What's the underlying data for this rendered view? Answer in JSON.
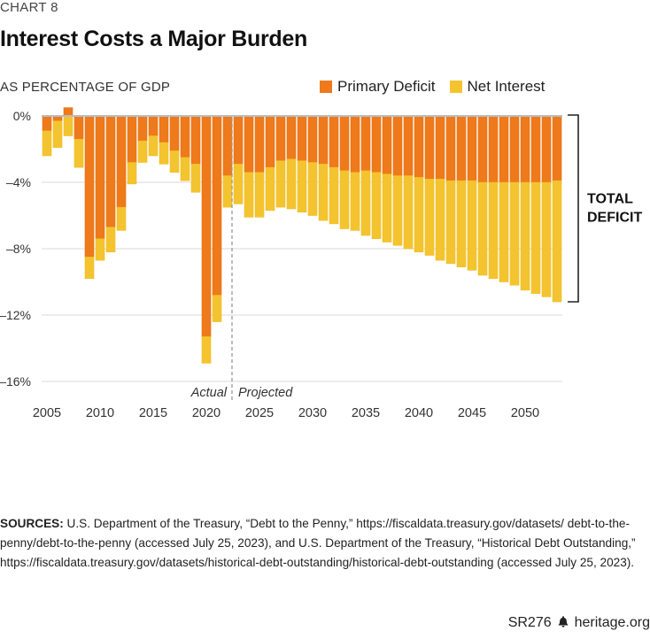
{
  "kicker": "CHART 8",
  "title": "Interest Costs a Major Burden",
  "subtitle": "AS PERCENTAGE OF GDP",
  "legend": [
    {
      "label": "Primary Deficit",
      "color": "#EE7A1C"
    },
    {
      "label": "Net Interest",
      "color": "#F4C430"
    }
  ],
  "annotations": {
    "actual": "Actual",
    "projected": "Projected",
    "bracket_label_line1": "TOTAL",
    "bracket_label_line2": "DEFICIT"
  },
  "sources": {
    "label": "SOURCES:",
    "text": " U.S. Department of the Treasury, “Debt to the Penny,” https://fiscaldata.treasury.gov/datasets/ debt-to-the-penny/debt-to-the-penny (accessed July 25, 2023), and U.S. Department of the Treasury, “Historical Debt Outstanding,” https://fiscaldata.treasury.gov/datasets/historical-debt-outstanding/historical-debt-outstanding (accessed July 25, 2023)."
  },
  "footer": {
    "report_id": "SR276",
    "icon": "liberty-bell-icon",
    "site": "heritage.org"
  },
  "chart_data": {
    "type": "bar",
    "stacked": true,
    "title": "Interest Costs a Major Burden",
    "ylabel": "AS PERCENTAGE OF GDP",
    "xlabel": "",
    "ylim": [
      -16,
      0
    ],
    "yticks": [
      0,
      -4,
      -8,
      -12,
      -16
    ],
    "ytick_labels": [
      "0%",
      "–4%",
      "–8%",
      "–12%",
      "–16%"
    ],
    "xtick_labels": [
      "2005",
      "2010",
      "2015",
      "2020",
      "2025",
      "2030",
      "2035",
      "2040",
      "2045",
      "2050"
    ],
    "grid": true,
    "legend_position": "top-right",
    "actual_projected_split_after": 2022,
    "categories": [
      2005,
      2006,
      2007,
      2008,
      2009,
      2010,
      2011,
      2012,
      2013,
      2014,
      2015,
      2016,
      2017,
      2018,
      2019,
      2020,
      2021,
      2022,
      2023,
      2024,
      2025,
      2026,
      2027,
      2028,
      2029,
      2030,
      2031,
      2032,
      2033,
      2034,
      2035,
      2036,
      2037,
      2038,
      2039,
      2040,
      2041,
      2042,
      2043,
      2044,
      2045,
      2046,
      2047,
      2048,
      2049,
      2050,
      2051,
      2052,
      2053
    ],
    "series": [
      {
        "name": "Primary Deficit",
        "color": "#EE7A1C",
        "values": [
          -0.9,
          -0.3,
          0.5,
          -1.4,
          -8.5,
          -7.4,
          -6.7,
          -5.5,
          -2.8,
          -1.5,
          -1.2,
          -1.6,
          -2.1,
          -2.5,
          -2.9,
          -13.3,
          -10.8,
          -3.6,
          -2.9,
          -3.4,
          -3.4,
          -3.1,
          -2.7,
          -2.6,
          -2.7,
          -2.8,
          -2.9,
          -3.1,
          -3.3,
          -3.4,
          -3.3,
          -3.4,
          -3.5,
          -3.6,
          -3.6,
          -3.7,
          -3.8,
          -3.8,
          -3.9,
          -3.9,
          -3.9,
          -4.0,
          -4.0,
          -4.0,
          -4.0,
          -4.0,
          -4.0,
          -4.0,
          -3.9
        ]
      },
      {
        "name": "Net Interest",
        "color": "#F4C430",
        "values": [
          -1.5,
          -1.6,
          -1.2,
          -1.7,
          -1.3,
          -1.3,
          -1.5,
          -1.4,
          -1.3,
          -1.3,
          -1.2,
          -1.3,
          -1.3,
          -1.4,
          -1.7,
          -1.6,
          -1.6,
          -1.9,
          -2.4,
          -2.7,
          -2.7,
          -2.6,
          -2.8,
          -3.0,
          -3.1,
          -3.2,
          -3.4,
          -3.4,
          -3.5,
          -3.5,
          -3.9,
          -4.0,
          -4.1,
          -4.2,
          -4.4,
          -4.5,
          -4.6,
          -4.9,
          -5.0,
          -5.2,
          -5.4,
          -5.6,
          -5.8,
          -6.0,
          -6.2,
          -6.5,
          -6.7,
          -6.9,
          -7.3
        ]
      }
    ],
    "total_deficit_2053": -11.2
  }
}
